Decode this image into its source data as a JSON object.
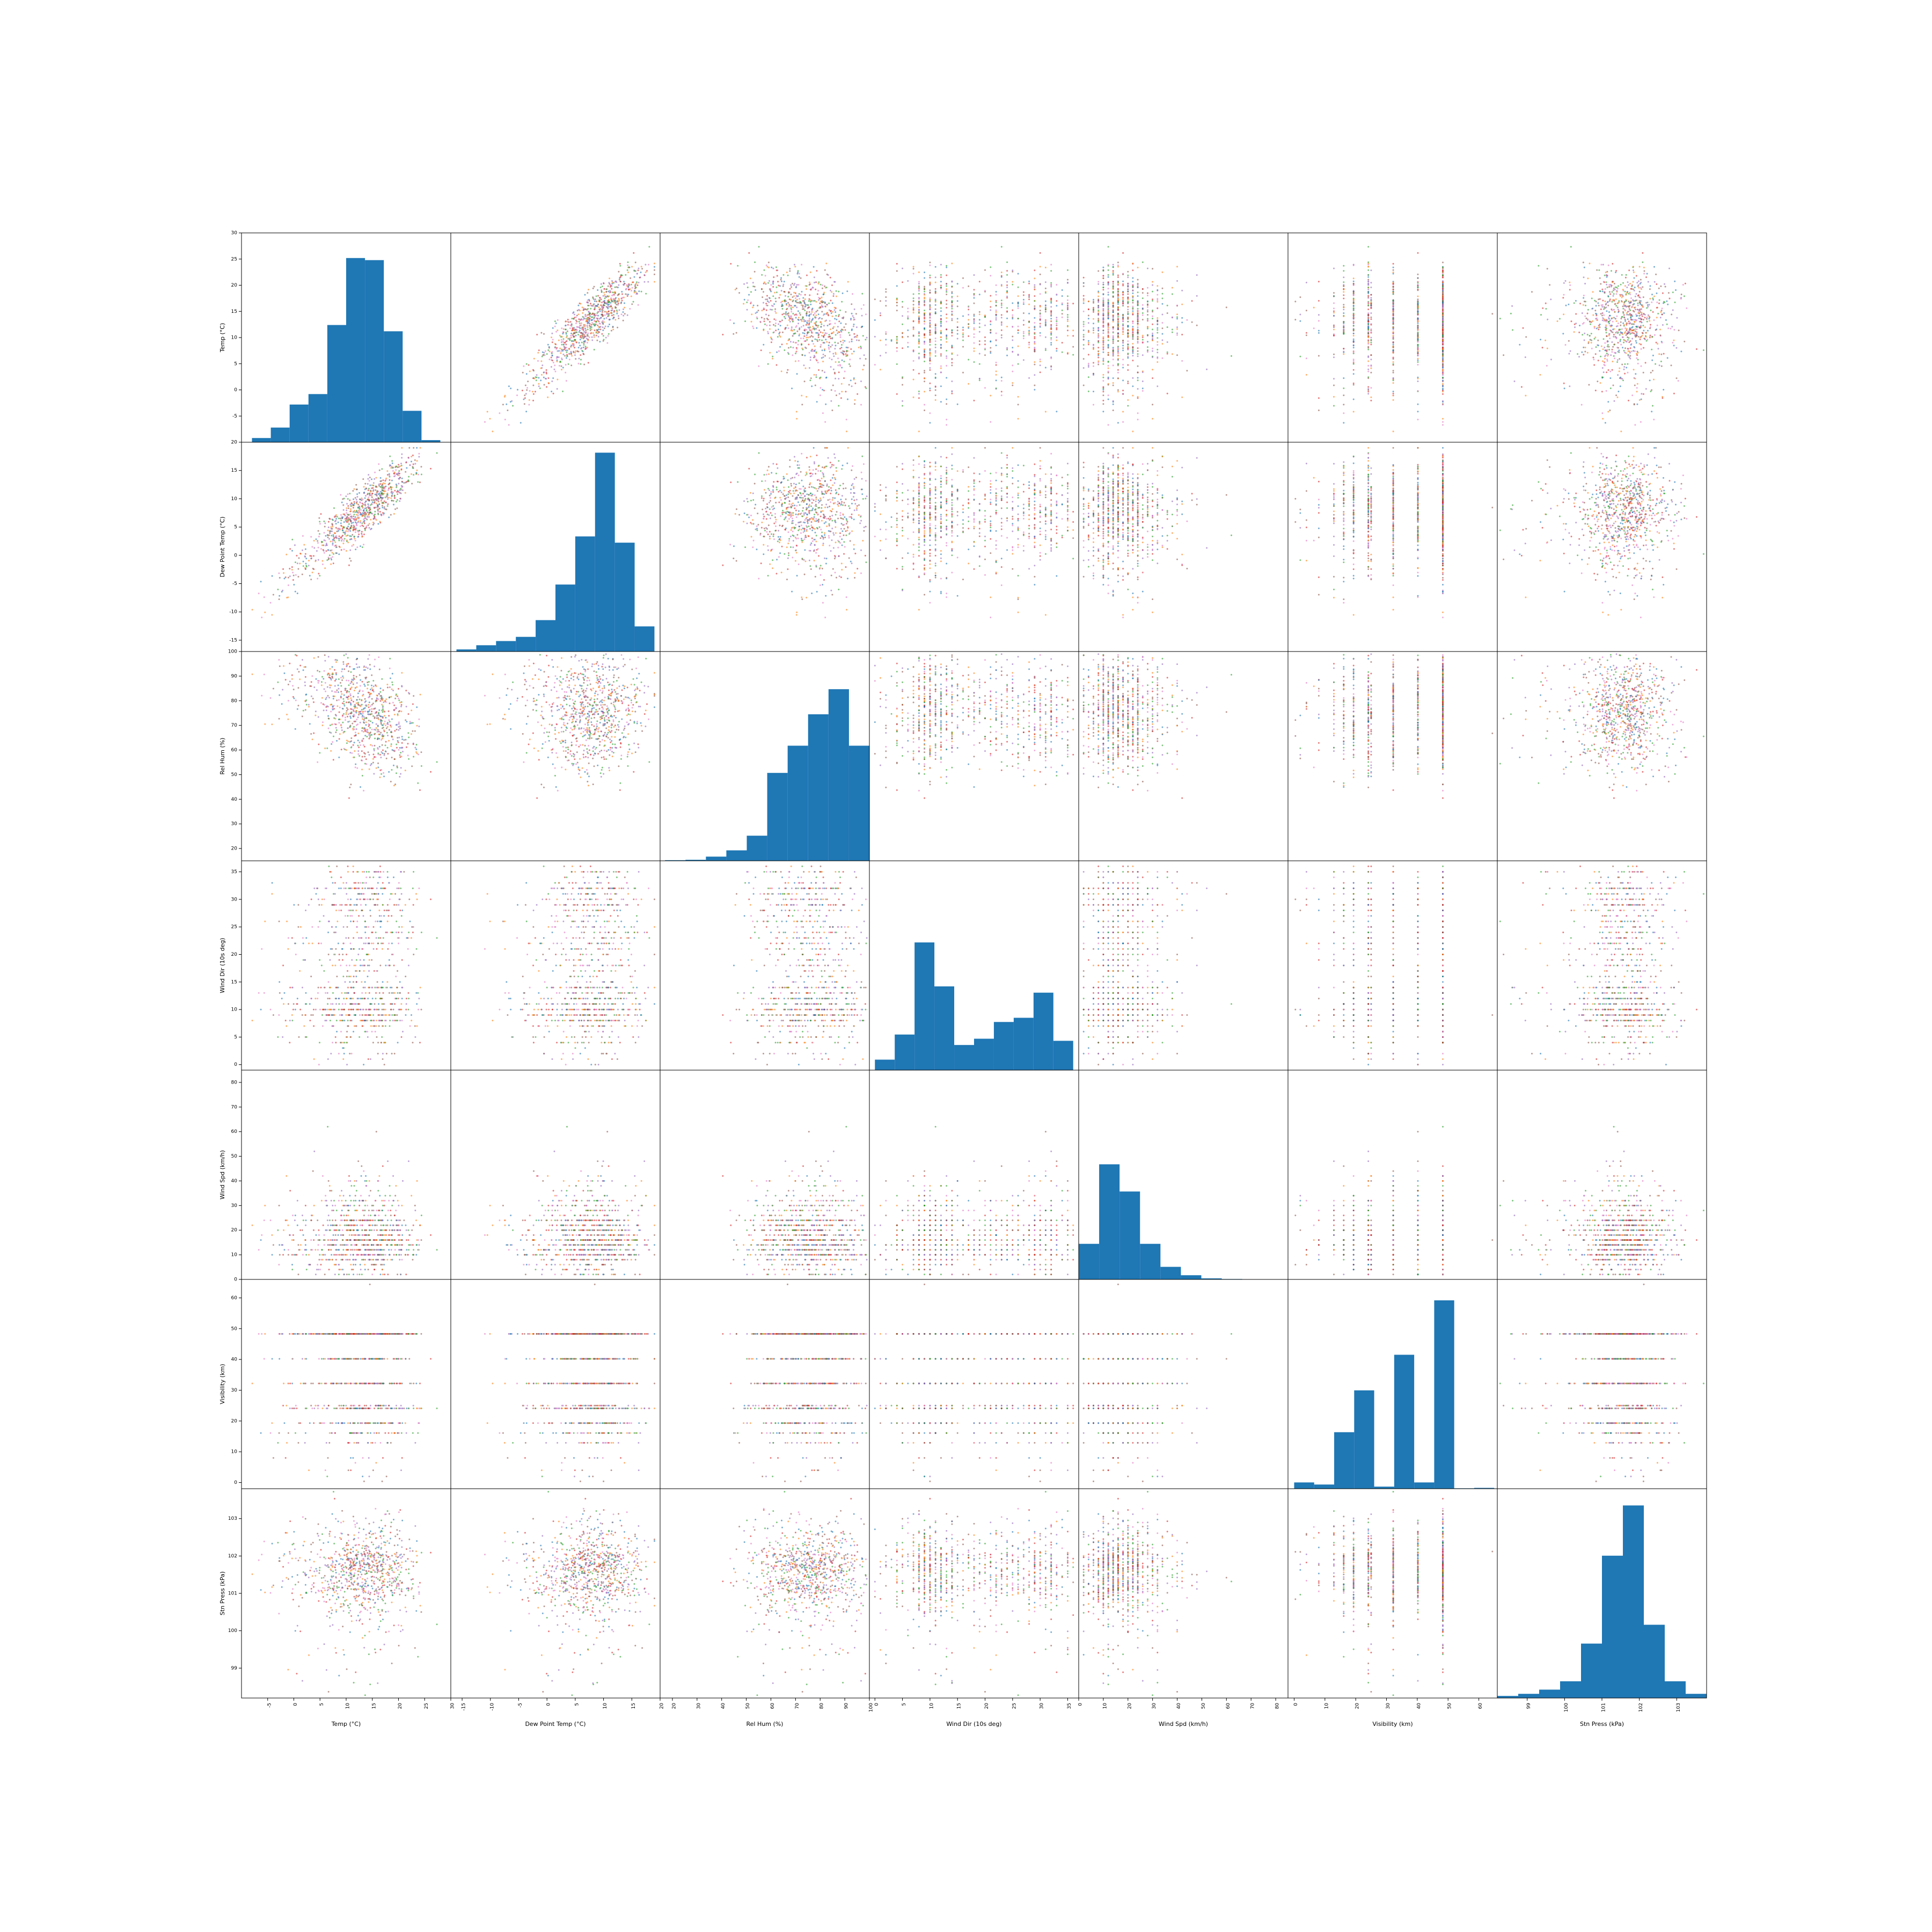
{
  "chart_data": {
    "type": "scatter_matrix",
    "variables": [
      {
        "name": "Temp (°C)",
        "range": [
          -10,
          30
        ],
        "ticks": [
          -5,
          0,
          5,
          10,
          15,
          20,
          25,
          30
        ],
        "hist_range": [
          -8,
          28
        ],
        "hist": [
          0.02,
          0.07,
          0.18,
          0.23,
          0.56,
          0.88,
          0.87,
          0.53,
          0.15,
          0.01
        ]
      },
      {
        "name": "Dew Point Temp (°C)",
        "range": [
          -17,
          20
        ],
        "ticks": [
          -15,
          -10,
          -5,
          0,
          5,
          10,
          15,
          20
        ],
        "hist_range": [
          -16,
          19
        ],
        "hist": [
          0.01,
          0.03,
          0.05,
          0.07,
          0.15,
          0.32,
          0.55,
          0.95,
          0.52,
          0.12
        ]
      },
      {
        "name": "Rel Hum (%)",
        "range": [
          15,
          100
        ],
        "ticks": [
          20,
          30,
          40,
          50,
          60,
          70,
          80,
          90,
          100
        ],
        "hist_range": [
          17,
          100
        ],
        "hist": [
          0.003,
          0.005,
          0.02,
          0.05,
          0.12,
          0.42,
          0.55,
          0.7,
          0.82,
          0.55
        ]
      },
      {
        "name": "Wind Dir (10s deg)",
        "range": [
          -1,
          37
        ],
        "ticks": [
          0,
          5,
          10,
          15,
          20,
          25,
          30,
          35
        ],
        "hist_range": [
          0,
          36
        ],
        "hist": [
          0.05,
          0.17,
          0.61,
          0.4,
          0.12,
          0.15,
          0.23,
          0.25,
          0.37,
          0.14
        ]
      },
      {
        "name": "Wind Spd (km/h)",
        "range": [
          0,
          85
        ],
        "ticks": [
          0,
          10,
          20,
          30,
          40,
          50,
          60,
          70,
          80
        ],
        "hist_range": [
          0,
          83
        ],
        "hist": [
          0.17,
          0.55,
          0.42,
          0.17,
          0.06,
          0.02,
          0.005,
          0.002,
          0.001,
          0.001
        ]
      },
      {
        "name": "Visibility (km)",
        "range": [
          -2,
          66
        ],
        "ticks": [
          0,
          10,
          20,
          30,
          40,
          50,
          60
        ],
        "hist_range": [
          0,
          65
        ],
        "hist": [
          0.03,
          0.02,
          0.27,
          0.47,
          0.01,
          0.64,
          0.03,
          0.9,
          0.002,
          0.004
        ]
      },
      {
        "name": "Stn Press (kPa)",
        "range": [
          98.2,
          103.8
        ],
        "ticks": [
          99,
          100,
          101,
          102,
          103
        ],
        "hist_range": [
          98.2,
          103.8
        ],
        "hist": [
          0.01,
          0.02,
          0.04,
          0.08,
          0.26,
          0.68,
          0.92,
          0.35,
          0.08,
          0.02
        ]
      }
    ],
    "colors": {
      "histogram": "#1f77b4",
      "points": [
        "#ff7f0e",
        "#1f77b4",
        "#2ca02c",
        "#d62728",
        "#9467bd",
        "#e377c2",
        "#8c564b"
      ]
    }
  }
}
